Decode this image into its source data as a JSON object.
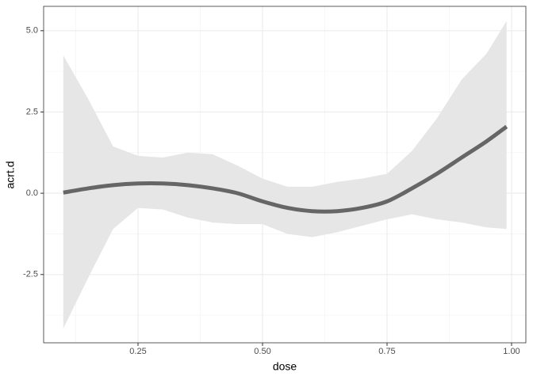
{
  "chart_data": {
    "type": "line",
    "x_label": "dose",
    "y_label": "acrt.d",
    "x": [
      0.1,
      0.15,
      0.2,
      0.25,
      0.3,
      0.35,
      0.4,
      0.45,
      0.5,
      0.55,
      0.6,
      0.65,
      0.7,
      0.75,
      0.8,
      0.85,
      0.9,
      0.95,
      0.99
    ],
    "values": [
      0.02,
      0.15,
      0.25,
      0.3,
      0.3,
      0.25,
      0.15,
      0.0,
      -0.25,
      -0.45,
      -0.55,
      -0.55,
      -0.45,
      -0.25,
      0.15,
      0.6,
      1.1,
      1.6,
      2.05
    ],
    "lower": [
      -4.16,
      -2.6,
      -1.1,
      -0.45,
      -0.5,
      -0.75,
      -0.9,
      -0.95,
      -0.95,
      -1.25,
      -1.35,
      -1.2,
      -1.0,
      -0.8,
      -0.65,
      -0.8,
      -0.9,
      -1.05,
      -1.1
    ],
    "upper": [
      4.24,
      2.9,
      1.44,
      1.15,
      1.1,
      1.25,
      1.2,
      0.85,
      0.45,
      0.2,
      0.2,
      0.35,
      0.45,
      0.6,
      1.3,
      2.3,
      3.5,
      4.3,
      5.3
    ],
    "color": "#666666",
    "band_color": "#e6e6e6",
    "xlim": [
      0.0605,
      1.0287
    ],
    "ylim": [
      -4.6,
      5.75
    ],
    "xticks": [
      0.25,
      {
        "value": 0.5,
        "label": "0.50"
      },
      0.75,
      {
        "value": 1.0,
        "label": "1.00"
      }
    ],
    "yticks": [
      {
        "value": -2.5,
        "label": "-2.5"
      },
      {
        "value": 0,
        "label": "0.0"
      },
      2.5,
      {
        "value": 5,
        "label": "5.0"
      }
    ],
    "grid": true
  }
}
